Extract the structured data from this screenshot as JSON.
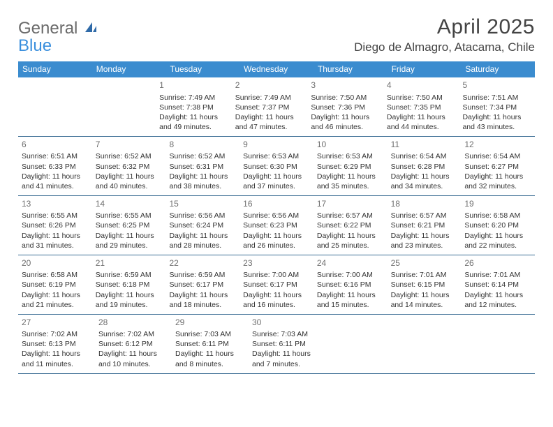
{
  "brand": {
    "line1": "General",
    "line2": "Blue"
  },
  "title": "April 2025",
  "location": "Diego de Almagro, Atacama, Chile",
  "colors": {
    "header_bg": "#3b8ccf",
    "header_text": "#ffffff",
    "row_border": "#3b6d94",
    "daynum": "#6f6f6f",
    "body_text": "#333333",
    "logo_gray": "#6a6a6a",
    "logo_blue": "#3a8fdd"
  },
  "dow": [
    "Sunday",
    "Monday",
    "Tuesday",
    "Wednesday",
    "Thursday",
    "Friday",
    "Saturday"
  ],
  "weeks": [
    [
      null,
      null,
      {
        "n": "1",
        "sr": "Sunrise: 7:49 AM",
        "ss": "Sunset: 7:38 PM",
        "d1": "Daylight: 11 hours",
        "d2": "and 49 minutes."
      },
      {
        "n": "2",
        "sr": "Sunrise: 7:49 AM",
        "ss": "Sunset: 7:37 PM",
        "d1": "Daylight: 11 hours",
        "d2": "and 47 minutes."
      },
      {
        "n": "3",
        "sr": "Sunrise: 7:50 AM",
        "ss": "Sunset: 7:36 PM",
        "d1": "Daylight: 11 hours",
        "d2": "and 46 minutes."
      },
      {
        "n": "4",
        "sr": "Sunrise: 7:50 AM",
        "ss": "Sunset: 7:35 PM",
        "d1": "Daylight: 11 hours",
        "d2": "and 44 minutes."
      },
      {
        "n": "5",
        "sr": "Sunrise: 7:51 AM",
        "ss": "Sunset: 7:34 PM",
        "d1": "Daylight: 11 hours",
        "d2": "and 43 minutes."
      }
    ],
    [
      {
        "n": "6",
        "sr": "Sunrise: 6:51 AM",
        "ss": "Sunset: 6:33 PM",
        "d1": "Daylight: 11 hours",
        "d2": "and 41 minutes."
      },
      {
        "n": "7",
        "sr": "Sunrise: 6:52 AM",
        "ss": "Sunset: 6:32 PM",
        "d1": "Daylight: 11 hours",
        "d2": "and 40 minutes."
      },
      {
        "n": "8",
        "sr": "Sunrise: 6:52 AM",
        "ss": "Sunset: 6:31 PM",
        "d1": "Daylight: 11 hours",
        "d2": "and 38 minutes."
      },
      {
        "n": "9",
        "sr": "Sunrise: 6:53 AM",
        "ss": "Sunset: 6:30 PM",
        "d1": "Daylight: 11 hours",
        "d2": "and 37 minutes."
      },
      {
        "n": "10",
        "sr": "Sunrise: 6:53 AM",
        "ss": "Sunset: 6:29 PM",
        "d1": "Daylight: 11 hours",
        "d2": "and 35 minutes."
      },
      {
        "n": "11",
        "sr": "Sunrise: 6:54 AM",
        "ss": "Sunset: 6:28 PM",
        "d1": "Daylight: 11 hours",
        "d2": "and 34 minutes."
      },
      {
        "n": "12",
        "sr": "Sunrise: 6:54 AM",
        "ss": "Sunset: 6:27 PM",
        "d1": "Daylight: 11 hours",
        "d2": "and 32 minutes."
      }
    ],
    [
      {
        "n": "13",
        "sr": "Sunrise: 6:55 AM",
        "ss": "Sunset: 6:26 PM",
        "d1": "Daylight: 11 hours",
        "d2": "and 31 minutes."
      },
      {
        "n": "14",
        "sr": "Sunrise: 6:55 AM",
        "ss": "Sunset: 6:25 PM",
        "d1": "Daylight: 11 hours",
        "d2": "and 29 minutes."
      },
      {
        "n": "15",
        "sr": "Sunrise: 6:56 AM",
        "ss": "Sunset: 6:24 PM",
        "d1": "Daylight: 11 hours",
        "d2": "and 28 minutes."
      },
      {
        "n": "16",
        "sr": "Sunrise: 6:56 AM",
        "ss": "Sunset: 6:23 PM",
        "d1": "Daylight: 11 hours",
        "d2": "and 26 minutes."
      },
      {
        "n": "17",
        "sr": "Sunrise: 6:57 AM",
        "ss": "Sunset: 6:22 PM",
        "d1": "Daylight: 11 hours",
        "d2": "and 25 minutes."
      },
      {
        "n": "18",
        "sr": "Sunrise: 6:57 AM",
        "ss": "Sunset: 6:21 PM",
        "d1": "Daylight: 11 hours",
        "d2": "and 23 minutes."
      },
      {
        "n": "19",
        "sr": "Sunrise: 6:58 AM",
        "ss": "Sunset: 6:20 PM",
        "d1": "Daylight: 11 hours",
        "d2": "and 22 minutes."
      }
    ],
    [
      {
        "n": "20",
        "sr": "Sunrise: 6:58 AM",
        "ss": "Sunset: 6:19 PM",
        "d1": "Daylight: 11 hours",
        "d2": "and 21 minutes."
      },
      {
        "n": "21",
        "sr": "Sunrise: 6:59 AM",
        "ss": "Sunset: 6:18 PM",
        "d1": "Daylight: 11 hours",
        "d2": "and 19 minutes."
      },
      {
        "n": "22",
        "sr": "Sunrise: 6:59 AM",
        "ss": "Sunset: 6:17 PM",
        "d1": "Daylight: 11 hours",
        "d2": "and 18 minutes."
      },
      {
        "n": "23",
        "sr": "Sunrise: 7:00 AM",
        "ss": "Sunset: 6:17 PM",
        "d1": "Daylight: 11 hours",
        "d2": "and 16 minutes."
      },
      {
        "n": "24",
        "sr": "Sunrise: 7:00 AM",
        "ss": "Sunset: 6:16 PM",
        "d1": "Daylight: 11 hours",
        "d2": "and 15 minutes."
      },
      {
        "n": "25",
        "sr": "Sunrise: 7:01 AM",
        "ss": "Sunset: 6:15 PM",
        "d1": "Daylight: 11 hours",
        "d2": "and 14 minutes."
      },
      {
        "n": "26",
        "sr": "Sunrise: 7:01 AM",
        "ss": "Sunset: 6:14 PM",
        "d1": "Daylight: 11 hours",
        "d2": "and 12 minutes."
      }
    ],
    [
      {
        "n": "27",
        "sr": "Sunrise: 7:02 AM",
        "ss": "Sunset: 6:13 PM",
        "d1": "Daylight: 11 hours",
        "d2": "and 11 minutes."
      },
      {
        "n": "28",
        "sr": "Sunrise: 7:02 AM",
        "ss": "Sunset: 6:12 PM",
        "d1": "Daylight: 11 hours",
        "d2": "and 10 minutes."
      },
      {
        "n": "29",
        "sr": "Sunrise: 7:03 AM",
        "ss": "Sunset: 6:11 PM",
        "d1": "Daylight: 11 hours",
        "d2": "and 8 minutes."
      },
      {
        "n": "30",
        "sr": "Sunrise: 7:03 AM",
        "ss": "Sunset: 6:11 PM",
        "d1": "Daylight: 11 hours",
        "d2": "and 7 minutes."
      },
      null,
      null,
      null
    ]
  ]
}
